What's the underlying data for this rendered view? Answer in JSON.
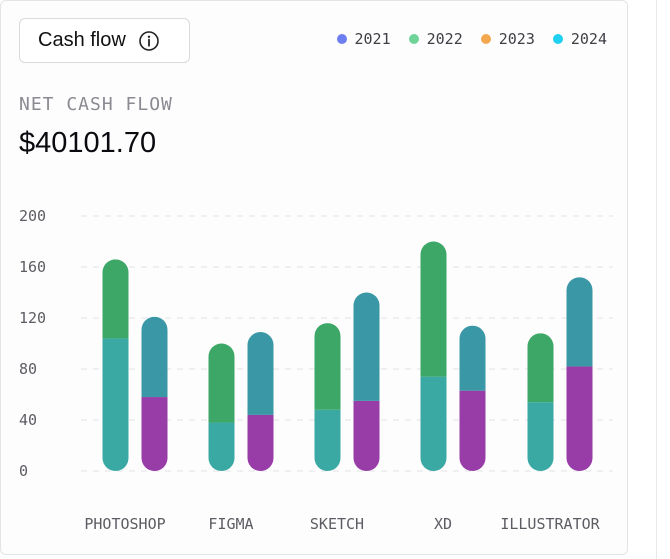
{
  "header": {
    "title": "Cash flow",
    "info_icon": "info-circle-icon"
  },
  "legend": [
    {
      "label": "2021",
      "color": "#6c7ef0"
    },
    {
      "label": "2022",
      "color": "#6fd39a"
    },
    {
      "label": "2023",
      "color": "#f3a84f"
    },
    {
      "label": "2024",
      "color": "#1fd0f0"
    }
  ],
  "kpi": {
    "label": "NET CASH FLOW",
    "value": "$40101.70"
  },
  "chart_data": {
    "type": "bar",
    "stacked": true,
    "categories": [
      "PHOTOSHOP",
      "FIGMA",
      "SKETCH",
      "XD",
      "ILLUSTRATOR"
    ],
    "ylim": [
      0,
      200
    ],
    "yticks": [
      0,
      40,
      80,
      120,
      160,
      200
    ],
    "grid": true,
    "bar_groups": [
      {
        "name": "",
        "segments": [
          {
            "name": "",
            "color": "#3aa9a4",
            "values": [
              104,
              38,
              48,
              74,
              54
            ]
          },
          {
            "name": "",
            "color": "#3ca766",
            "values": [
              62,
              62,
              68,
              106,
              54
            ]
          }
        ]
      },
      {
        "name": "",
        "segments": [
          {
            "name": "",
            "color": "#983ca8",
            "values": [
              58,
              44,
              55,
              63,
              82
            ]
          },
          {
            "name": "",
            "color": "#3a97a5",
            "values": [
              63,
              65,
              85,
              51,
              70
            ]
          }
        ]
      }
    ]
  }
}
